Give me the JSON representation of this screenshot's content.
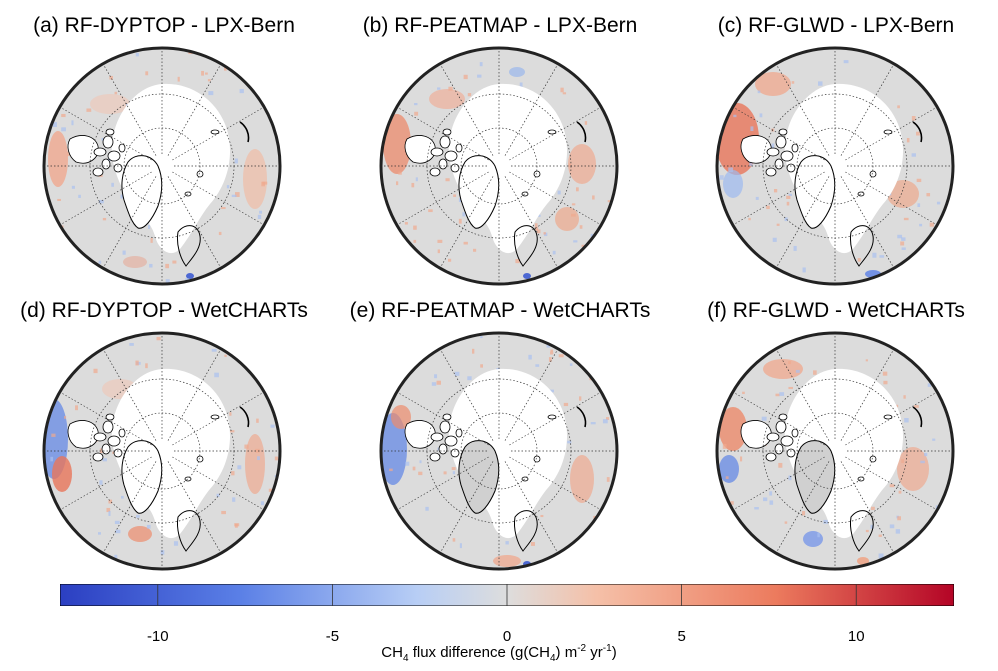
{
  "panels": [
    {
      "title": "(a) RF-DYPTOP - LPX-Bern"
    },
    {
      "title": "(b) RF-PEATMAP - LPX-Bern"
    },
    {
      "title": "(c) RF-GLWD - LPX-Bern"
    },
    {
      "title": "(d) RF-DYPTOP - WetCHARTs"
    },
    {
      "title": "(e) RF-PEATMAP - WetCHARTs"
    },
    {
      "title": "(f) RF-GLWD - WetCHARTs"
    }
  ],
  "colorbar": {
    "min": -12.8,
    "max": 12.8,
    "ticks": [
      {
        "value": -10,
        "label": "-10"
      },
      {
        "value": -5,
        "label": "-5"
      },
      {
        "value": 0,
        "label": "0"
      },
      {
        "value": 5,
        "label": "5"
      },
      {
        "value": 10,
        "label": "10"
      }
    ],
    "label_pre": "CH",
    "label_sub1": "4",
    "label_mid": " flux difference (g(CH",
    "label_sub2": "4",
    "label_mid2": ") m",
    "label_sup1": "-2",
    "label_mid3": " yr",
    "label_sup2": "-1",
    "label_post": ")",
    "colors": [
      "#2b3fc2",
      "#5a7fe6",
      "#b8cef5",
      "#dddddd",
      "#f5c0a8",
      "#ec7b5e",
      "#b40426"
    ]
  }
}
